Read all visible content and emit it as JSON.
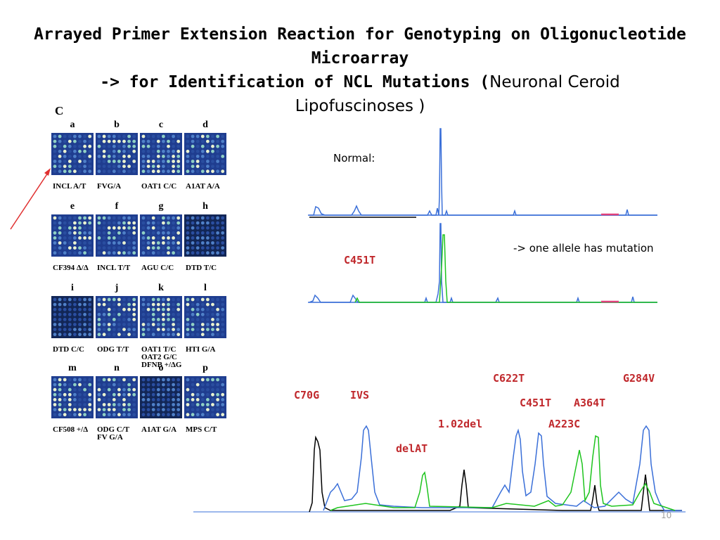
{
  "title": {
    "line1": "Arrayed Primer Extension Reaction for Genotyping on Oligonucleotide",
    "line2": "Microarray",
    "line3_bold": "-> for Identification of NCL Mutations (",
    "line3_normal": "Neuronal Ceroid",
    "line4": "Lipofuscinoses )"
  },
  "figure": {
    "panel_letter": "C",
    "groups": [
      {
        "letters": [
          "a",
          "b",
          "c",
          "d"
        ],
        "labels": [
          "INCL A/T",
          "FVG/A",
          "OAT1 C/C",
          "A1AT A/A"
        ]
      },
      {
        "letters": [
          "e",
          "f",
          "g",
          "h"
        ],
        "labels": [
          "CF394 Δ/Δ",
          "INCL T/T",
          "AGU C/C",
          "DTD T/C"
        ]
      },
      {
        "letters": [
          "i",
          "j",
          "k",
          "l"
        ],
        "labels": [
          "DTD C/C",
          "ODG T/T",
          "OAT1 T/C\nOAT2 G/C\nDFNB +/ΔG",
          "HTI G/A"
        ]
      },
      {
        "letters": [
          "m",
          "n",
          "o",
          "p"
        ],
        "labels": [
          "CF508 +/Δ",
          "ODG C/T\nFV G/A",
          "A1AT G/A",
          "MPS C/T"
        ]
      }
    ]
  },
  "traces": {
    "normal_label": "Normal:",
    "mutant_label": "C451T",
    "mutation_note": "-> one allele has mutation",
    "mutation_labels": {
      "c70g": "C70G",
      "ivs": "IVS",
      "c622t": "C622T",
      "g284v": "G284V",
      "c451t": "C451T",
      "a364t": "A364T",
      "del102": "1.02del",
      "a223c": "A223C",
      "delat": "delAT"
    }
  },
  "colors": {
    "blue_trace": "#3a6fd8",
    "green_trace": "#1ec41e",
    "black_trace": "#000000",
    "mutation_red": "#c0282c",
    "array_bg": "#1f3d8f"
  },
  "page_number": "10"
}
